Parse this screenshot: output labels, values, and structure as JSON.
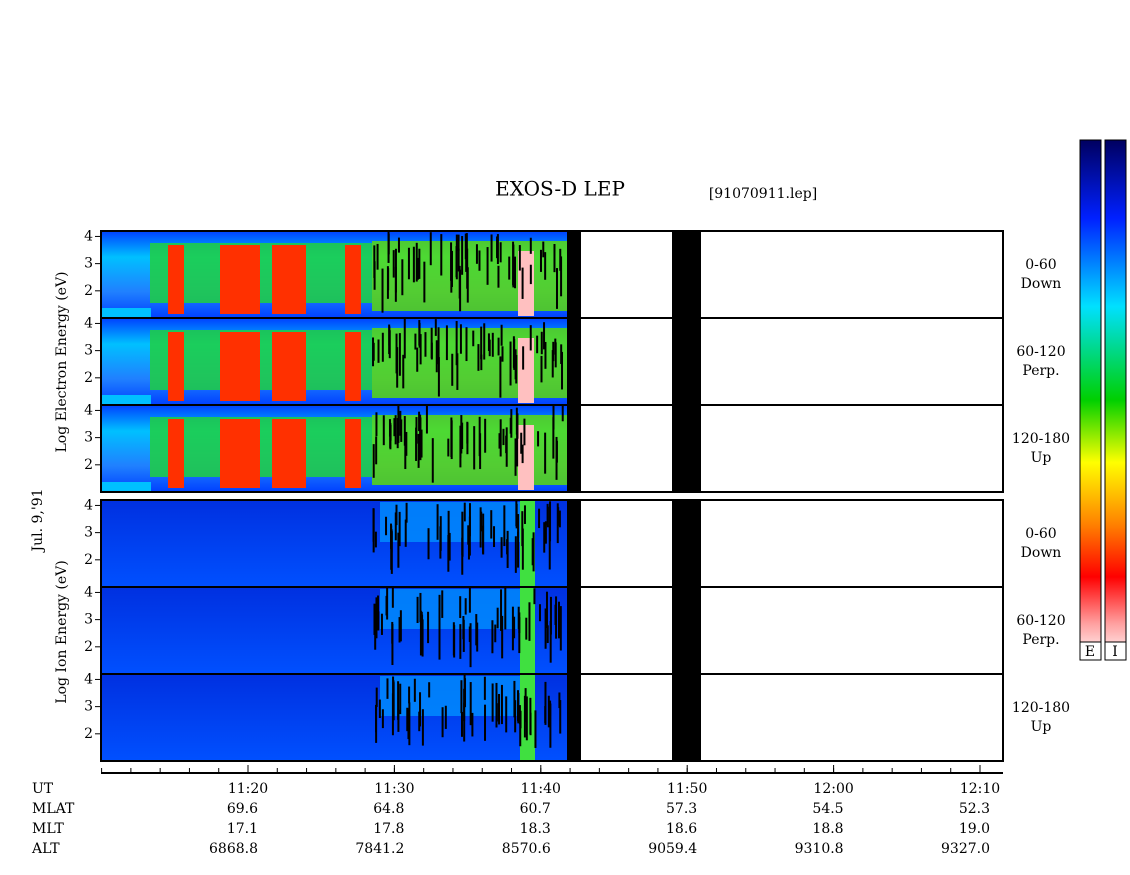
{
  "header": {
    "title": "EXOS-D LEP",
    "file": "[91070911.lep]",
    "date": "Jul. 9,'91"
  },
  "electron": {
    "axis_label": "Log  Electron  Energy (eV)",
    "panels": [
      {
        "label": "0-60",
        "sub": "Down",
        "ticks": [
          "4",
          "3",
          "2"
        ]
      },
      {
        "label": "60-120",
        "sub": "Perp.",
        "ticks": [
          "4",
          "3",
          "2"
        ]
      },
      {
        "label": "120-180",
        "sub": "Up",
        "ticks": [
          "4",
          "3",
          "2"
        ]
      }
    ]
  },
  "ion": {
    "axis_label": "Log  Ion  Energy (eV)",
    "panels": [
      {
        "label": "0-60",
        "sub": "Down",
        "ticks": [
          "4",
          "3",
          "2"
        ]
      },
      {
        "label": "60-120",
        "sub": "Perp.",
        "ticks": [
          "4",
          "3",
          "2"
        ]
      },
      {
        "label": "120-180",
        "sub": "Up",
        "ticks": [
          "4",
          "3",
          "2"
        ]
      }
    ]
  },
  "colorbar": {
    "labels": [
      "E",
      "I"
    ]
  },
  "time_axis": {
    "rows": [
      {
        "name": "UT",
        "values": [
          "11:20",
          "11:30",
          "11:40",
          "11:50",
          "12:00",
          "12:10"
        ]
      },
      {
        "name": "MLAT",
        "values": [
          "69.6",
          "64.8",
          "60.7",
          "57.3",
          "54.5",
          "52.3"
        ]
      },
      {
        "name": "MLT",
        "values": [
          "17.1",
          "17.8",
          "18.3",
          "18.6",
          "18.8",
          "19.0"
        ]
      },
      {
        "name": "ALT",
        "values": [
          "6868.8",
          "7841.2",
          "8570.6",
          "9059.4",
          "9310.8",
          "9327.0"
        ]
      }
    ]
  }
}
